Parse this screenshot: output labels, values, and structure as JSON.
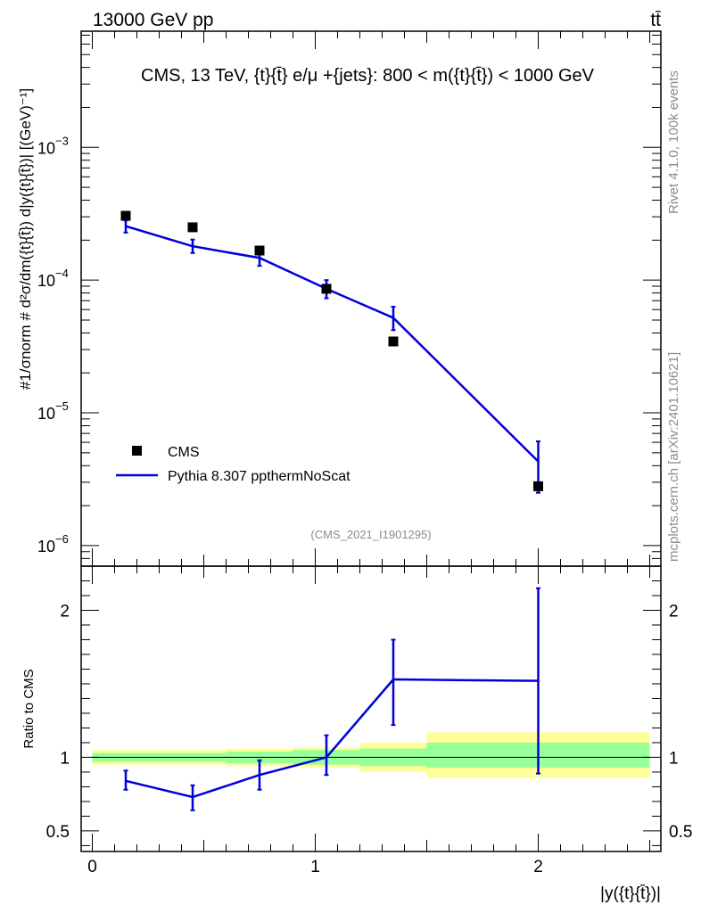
{
  "header": {
    "left": "13000 GeV pp",
    "right": "tt̄"
  },
  "side_labels": {
    "rivet": "Rivet 4.1.0,  100k events",
    "mcplots": "mcplots.cern.ch [arXiv:2401.10621]"
  },
  "colors": {
    "data": "#000000",
    "mc": "#0000dd",
    "band_outer": "#ffff99",
    "band_inner": "#99ff99",
    "watermark": "#8c8c8c"
  },
  "chart_data": [
    {
      "type": "scatter",
      "name": "main",
      "title": "CMS, 13 TeV, {t}{t̄} e/μ +{jets}: 800 < m({t}{t̄}) < 1000 GeV",
      "watermark": "(CMS_2021_I1901295)",
      "ylabel": "#1/σnorm # d²σ/dm({t}{t̄}) d|y({t}{t̄})| [(GeV)⁻¹]",
      "yscale": "log",
      "ylim": [
        7e-07,
        0.0075
      ],
      "xlim": [
        -0.05,
        2.55
      ],
      "y_ticks": [
        {
          "value": 1e-06,
          "base": "10",
          "exp": "−6"
        },
        {
          "value": 1e-05,
          "base": "10",
          "exp": "−5"
        },
        {
          "value": 0.0001,
          "base": "10",
          "exp": "−4"
        },
        {
          "value": 0.001,
          "base": "10",
          "exp": "−3"
        }
      ],
      "legend": {
        "position": "lower-left",
        "entries": [
          "CMS",
          "Pythia 8.307 ppthermNoScat"
        ]
      },
      "series": [
        {
          "name": "CMS",
          "x": [
            0.15,
            0.45,
            0.75,
            1.05,
            1.35,
            2.0
          ],
          "values": [
            0.000305,
            0.00025,
            0.000167,
            8.6e-05,
            3.45e-05,
            2.8e-06
          ]
        },
        {
          "name": "Pythia 8.307 ppthermNoScat",
          "x": [
            0.15,
            0.45,
            0.75,
            1.05,
            1.35,
            2.0
          ],
          "values": [
            0.000255,
            0.00018,
            0.000147,
            8.6e-05,
            5.2e-05,
            4.3e-06
          ],
          "err_low": [
            0.000228,
            0.00016,
            0.000128,
            7.3e-05,
            4.2e-05,
            2.5e-06
          ],
          "err_high": [
            0.000282,
            0.000202,
            0.000166,
            0.0001,
            6.3e-05,
            6.1e-06
          ]
        }
      ]
    },
    {
      "type": "line",
      "name": "ratio",
      "ylabel": "Ratio to CMS",
      "xlabel": "|y({t}{t̄})|",
      "ylim": [
        0.36,
        2.3
      ],
      "xlim": [
        -0.05,
        2.55
      ],
      "y_ticks": [
        {
          "value": 0.5,
          "label": "0.5"
        },
        {
          "value": 1,
          "label": "1"
        },
        {
          "value": 2,
          "label": "2"
        }
      ],
      "x_ticks": [
        {
          "value": 0,
          "label": "0"
        },
        {
          "value": 1,
          "label": "1"
        },
        {
          "value": 2,
          "label": "2"
        }
      ],
      "bins": [
        {
          "lo": 0.0,
          "hi": 0.3,
          "inner": [
            0.97,
            1.03
          ],
          "outer": [
            0.95,
            1.05
          ]
        },
        {
          "lo": 0.3,
          "hi": 0.6,
          "inner": [
            0.97,
            1.03
          ],
          "outer": [
            0.95,
            1.05
          ]
        },
        {
          "lo": 0.6,
          "hi": 0.9,
          "inner": [
            0.96,
            1.04
          ],
          "outer": [
            0.94,
            1.06
          ]
        },
        {
          "lo": 0.9,
          "hi": 1.2,
          "inner": [
            0.95,
            1.05
          ],
          "outer": [
            0.93,
            1.07
          ]
        },
        {
          "lo": 1.2,
          "hi": 1.5,
          "inner": [
            0.94,
            1.06
          ],
          "outer": [
            0.9,
            1.1
          ]
        },
        {
          "lo": 1.5,
          "hi": 2.5,
          "inner": [
            0.93,
            1.1
          ],
          "outer": [
            0.86,
            1.17
          ]
        }
      ],
      "series": [
        {
          "name": "Pythia 8.307 ppthermNoScat",
          "x": [
            0.15,
            0.45,
            0.75,
            1.05,
            1.35,
            2.0
          ],
          "values": [
            0.84,
            0.73,
            0.88,
            1.0,
            1.53,
            1.52
          ],
          "err_low": [
            0.78,
            0.64,
            0.78,
            0.88,
            1.22,
            0.89
          ],
          "err_high": [
            0.91,
            0.81,
            0.98,
            1.15,
            1.8,
            2.15
          ],
          "step_end": [
            1.5,
            2.5
          ]
        }
      ]
    }
  ]
}
